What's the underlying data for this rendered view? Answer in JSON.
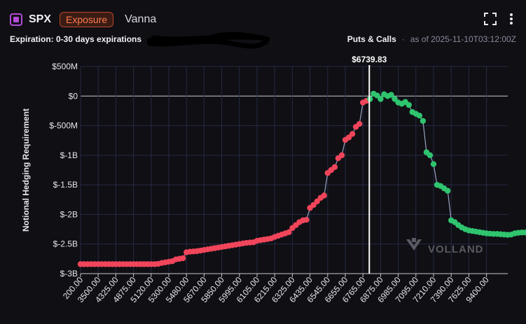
{
  "header": {
    "ticker": "SPX",
    "badge": "Exposure",
    "greek": "Vanna",
    "expiration_label": "Expiration: 0-30 days expirations",
    "type_label": "Puts & Calls",
    "separator": "·",
    "as_of": "as of 2025-11-10T03:12:00Z"
  },
  "icons": [
    "fullscreen-icon",
    "more-vertical-icon"
  ],
  "watermark": "VOLLAND",
  "colors": {
    "negative": "#f0455a",
    "positive": "#2fc46e",
    "line": "#9aa4c4",
    "grid": "#262a44",
    "accent": "#b44bd6"
  },
  "chart_data": {
    "type": "line",
    "ylabel": "Notional Hedging Requirement",
    "spot_label": "$6739.83",
    "spot_index": 82,
    "y_ticks": [
      {
        "v": 500,
        "label": "$500M"
      },
      {
        "v": 0,
        "label": "$0"
      },
      {
        "v": -500,
        "label": "$-500M"
      },
      {
        "v": -1000,
        "label": "$-1B"
      },
      {
        "v": -1500,
        "label": "$-1.5B"
      },
      {
        "v": -2000,
        "label": "$-2B"
      },
      {
        "v": -2500,
        "label": "$-2.5B"
      },
      {
        "v": -3000,
        "label": "$-3B"
      }
    ],
    "ylim": [
      -3000,
      500
    ],
    "x_tick_labels": [
      "200.00",
      "3500.00",
      "4325.00",
      "4875.00",
      "5120.00",
      "5300.00",
      "5480.00",
      "5670.00",
      "5850.00",
      "5995.00",
      "6105.00",
      "6215.00",
      "6325.00",
      "6435.00",
      "6545.00",
      "6655.00",
      "6765.00",
      "6875.00",
      "6985.00",
      "7095.00",
      "7210.00",
      "7390.00",
      "7625.00",
      "9400.00"
    ],
    "points_per_tick": 5,
    "series": [
      {
        "values": [
          -2840,
          -2840,
          -2840,
          -2840,
          -2840,
          -2840,
          -2840,
          -2840,
          -2840,
          -2840,
          -2840,
          -2840,
          -2840,
          -2840,
          -2840,
          -2840,
          -2840,
          -2840,
          -2840,
          -2840,
          -2840,
          -2840,
          -2835,
          -2820,
          -2810,
          -2800,
          -2790,
          -2760,
          -2750,
          -2740,
          -2640,
          -2630,
          -2625,
          -2620,
          -2610,
          -2600,
          -2590,
          -2580,
          -2570,
          -2560,
          -2550,
          -2540,
          -2530,
          -2520,
          -2510,
          -2500,
          -2490,
          -2480,
          -2475,
          -2470,
          -2445,
          -2435,
          -2425,
          -2415,
          -2405,
          -2380,
          -2360,
          -2340,
          -2320,
          -2300,
          -2230,
          -2180,
          -2130,
          -2100,
          -2090,
          -1890,
          -1840,
          -1780,
          -1720,
          -1680,
          -1300,
          -1250,
          -1200,
          -1050,
          -1000,
          -740,
          -700,
          -640,
          -520,
          -470,
          -110,
          -80,
          -50,
          40,
          10,
          -50,
          30,
          0,
          20,
          -50,
          -110,
          -130,
          -100,
          -150,
          -270,
          -300,
          -330,
          -420,
          -950,
          -1000,
          -1150,
          -1500,
          -1520,
          -1560,
          -1600,
          -2100,
          -2130,
          -2180,
          -2220,
          -2250,
          -2270,
          -2280,
          -2290,
          -2300,
          -2310,
          -2320,
          -2325,
          -2330,
          -2330,
          -2335,
          -2340,
          -2345,
          -2340,
          -2320,
          -2310,
          -2305,
          -2305,
          -2310,
          -2325,
          -2330,
          -2330,
          -2330,
          -2330,
          -2330,
          -2330,
          -2330,
          -2330,
          -2330,
          -2330,
          -2330,
          -2330,
          -2330,
          -2330,
          -2330,
          -2330,
          -2330,
          -2330,
          -2330,
          -2330,
          -2330,
          -2330,
          -2330,
          -2330,
          -2330,
          -2330,
          -2330,
          -2330,
          -2330,
          -2330
        ]
      }
    ]
  }
}
